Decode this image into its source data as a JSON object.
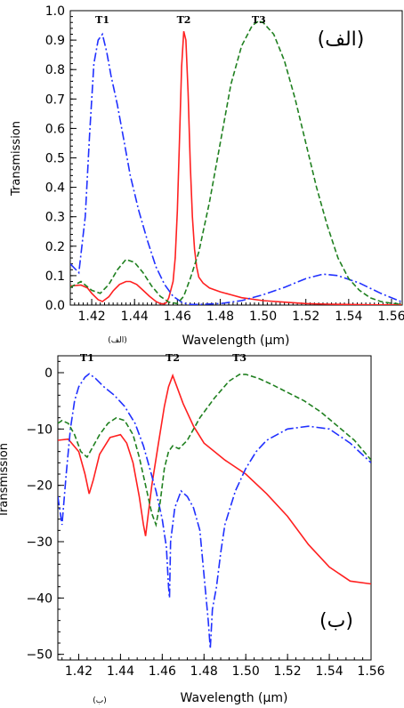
{
  "chart_data": [
    {
      "type": "line",
      "panel_label": "(الف)",
      "caption": "(الف)",
      "xlabel": "Wavelength (μm)",
      "ylabel": "Transmission",
      "xlim": [
        1.41,
        1.565
      ],
      "ylim": [
        0.0,
        1.0
      ],
      "x_ticks": [
        "1.42",
        "1.44",
        "1.46",
        "1.48",
        "1.50",
        "1.52",
        "1.54",
        "1.56"
      ],
      "y_ticks": [
        "0.0",
        "0.1",
        "0.2",
        "0.3",
        "0.4",
        "0.5",
        "0.6",
        "0.7",
        "0.8",
        "0.9",
        "1.0"
      ],
      "grid": false,
      "annotations": [
        {
          "text": "T1",
          "x": 1.425,
          "y": 0.975
        },
        {
          "text": "T2",
          "x": 1.463,
          "y": 0.975
        },
        {
          "text": "T3",
          "x": 1.498,
          "y": 0.99
        }
      ],
      "series": [
        {
          "color": "#ff2020",
          "dash": "solid",
          "x": [
            1.41,
            1.415,
            1.418,
            1.42,
            1.423,
            1.425,
            1.428,
            1.43,
            1.433,
            1.436,
            1.438,
            1.441,
            1.444,
            1.447,
            1.45,
            1.452,
            1.454,
            1.455,
            1.456,
            1.458,
            1.459,
            1.46,
            1.461,
            1.462,
            1.463,
            1.464,
            1.465,
            1.466,
            1.467,
            1.468,
            1.469,
            1.47,
            1.472,
            1.475,
            1.48,
            1.485,
            1.49,
            1.5,
            1.51,
            1.52,
            1.53,
            1.54,
            1.55,
            1.565
          ],
          "y": [
            0.065,
            0.068,
            0.058,
            0.04,
            0.018,
            0.012,
            0.028,
            0.048,
            0.07,
            0.08,
            0.08,
            0.07,
            0.05,
            0.03,
            0.012,
            0.005,
            0.004,
            0.01,
            0.025,
            0.08,
            0.16,
            0.32,
            0.56,
            0.81,
            0.93,
            0.9,
            0.72,
            0.48,
            0.3,
            0.19,
            0.13,
            0.095,
            0.075,
            0.058,
            0.045,
            0.035,
            0.025,
            0.015,
            0.01,
            0.005,
            0.003,
            0.002,
            0.001,
            0.001
          ]
        },
        {
          "color": "#2030ff",
          "dash": "dashdot",
          "x": [
            1.41,
            1.414,
            1.417,
            1.419,
            1.421,
            1.423,
            1.425,
            1.427,
            1.429,
            1.432,
            1.435,
            1.438,
            1.442,
            1.446,
            1.45,
            1.454,
            1.458,
            1.46,
            1.462,
            1.464,
            1.466,
            1.47,
            1.48,
            1.49,
            1.5,
            1.51,
            1.52,
            1.528,
            1.535,
            1.545,
            1.555,
            1.565
          ],
          "y": [
            0.14,
            0.11,
            0.3,
            0.58,
            0.82,
            0.9,
            0.92,
            0.86,
            0.78,
            0.68,
            0.56,
            0.44,
            0.32,
            0.22,
            0.13,
            0.07,
            0.03,
            0.02,
            0.01,
            0.005,
            0.002,
            0.002,
            0.005,
            0.015,
            0.035,
            0.06,
            0.09,
            0.105,
            0.1,
            0.075,
            0.04,
            0.01
          ]
        },
        {
          "color": "#208020",
          "dash": "dashed",
          "x": [
            1.41,
            1.415,
            1.42,
            1.424,
            1.428,
            1.432,
            1.436,
            1.44,
            1.444,
            1.448,
            1.452,
            1.456,
            1.46,
            1.463,
            1.466,
            1.47,
            1.475,
            1.48,
            1.485,
            1.49,
            1.495,
            1.498,
            1.5,
            1.505,
            1.51,
            1.515,
            1.52,
            1.525,
            1.53,
            1.535,
            1.54,
            1.545,
            1.55,
            1.555,
            1.56,
            1.565
          ],
          "y": [
            0.06,
            0.08,
            0.05,
            0.04,
            0.07,
            0.12,
            0.155,
            0.145,
            0.11,
            0.065,
            0.03,
            0.01,
            0.005,
            0.03,
            0.09,
            0.18,
            0.35,
            0.55,
            0.75,
            0.88,
            0.95,
            0.965,
            0.96,
            0.92,
            0.83,
            0.7,
            0.55,
            0.4,
            0.27,
            0.16,
            0.09,
            0.05,
            0.025,
            0.012,
            0.006,
            0.003
          ]
        }
      ]
    },
    {
      "type": "line",
      "panel_label": "(ب)",
      "caption": "(ب)",
      "xlabel": "Wavelength (μm)",
      "ylabel": "Transmission",
      "xlim": [
        1.41,
        1.56
      ],
      "ylim": [
        -51,
        3
      ],
      "x_ticks": [
        "1.42",
        "1.44",
        "1.46",
        "1.48",
        "1.50",
        "1.52",
        "1.54",
        "1.56"
      ],
      "y_ticks": [
        "0",
        "−10",
        "−20",
        "−30",
        "−40",
        "−50"
      ],
      "grid": false,
      "annotations": [
        {
          "text": "T1",
          "x": 1.424,
          "y": 1.5
        },
        {
          "text": "T2",
          "x": 1.465,
          "y": 1.5
        },
        {
          "text": "T3",
          "x": 1.497,
          "y": 1.5
        }
      ],
      "series": [
        {
          "color": "#ff2020",
          "dash": "solid",
          "x": [
            1.41,
            1.415,
            1.42,
            1.423,
            1.425,
            1.427,
            1.43,
            1.435,
            1.44,
            1.443,
            1.446,
            1.449,
            1.451,
            1.452,
            1.453,
            1.455,
            1.458,
            1.461,
            1.463,
            1.465,
            1.467,
            1.47,
            1.475,
            1.48,
            1.49,
            1.5,
            1.51,
            1.52,
            1.53,
            1.54,
            1.55,
            1.56
          ],
          "y": [
            -12,
            -11.8,
            -14,
            -18,
            -21.5,
            -19,
            -14.5,
            -11.5,
            -11,
            -12.5,
            -16,
            -22,
            -27,
            -29,
            -26,
            -20,
            -13,
            -6,
            -2.5,
            -0.5,
            -2.5,
            -5.5,
            -9.5,
            -12.5,
            -15.5,
            -18,
            -21.5,
            -25.5,
            -30.5,
            -34.5,
            -37,
            -37.5
          ]
        },
        {
          "color": "#2030ff",
          "dash": "dashdot",
          "x": [
            1.41,
            1.412,
            1.414,
            1.416,
            1.418,
            1.42,
            1.423,
            1.425,
            1.428,
            1.432,
            1.437,
            1.442,
            1.447,
            1.451,
            1.454,
            1.457,
            1.46,
            1.462,
            1.463,
            1.4635,
            1.464,
            1.466,
            1.469,
            1.472,
            1.475,
            1.478,
            1.48,
            1.482,
            1.483,
            1.484,
            1.486,
            1.488,
            1.49,
            1.495,
            1.5,
            1.505,
            1.51,
            1.52,
            1.53,
            1.54,
            1.55,
            1.56
          ],
          "y": [
            -22,
            -27,
            -18,
            -10,
            -5,
            -2.5,
            -0.8,
            -0.2,
            -1,
            -2.5,
            -4,
            -6,
            -9,
            -13,
            -17,
            -21,
            -26,
            -31,
            -38,
            -40,
            -30,
            -24,
            -21,
            -22,
            -24,
            -28,
            -36,
            -44,
            -49,
            -42,
            -38,
            -32,
            -27,
            -21,
            -17,
            -14,
            -12,
            -10,
            -9.5,
            -10,
            -12.5,
            -16
          ]
        },
        {
          "color": "#208020",
          "dash": "dashed",
          "x": [
            1.41,
            1.412,
            1.415,
            1.418,
            1.421,
            1.424,
            1.427,
            1.43,
            1.434,
            1.438,
            1.442,
            1.446,
            1.449,
            1.452,
            1.455,
            1.457,
            1.459,
            1.461,
            1.463,
            1.465,
            1.468,
            1.472,
            1.478,
            1.485,
            1.492,
            1.497,
            1.5,
            1.506,
            1.512,
            1.52,
            1.528,
            1.536,
            1.544,
            1.552,
            1.56
          ],
          "y": [
            -9,
            -8.5,
            -9,
            -11,
            -14,
            -15,
            -13,
            -11,
            -9,
            -8,
            -8.5,
            -11,
            -15,
            -20,
            -25,
            -27,
            -23,
            -17,
            -14,
            -13,
            -13.5,
            -12,
            -8,
            -4.5,
            -1.5,
            -0.3,
            -0.3,
            -1,
            -2,
            -3.5,
            -5,
            -7,
            -9.5,
            -12,
            -15.5
          ]
        }
      ]
    }
  ]
}
